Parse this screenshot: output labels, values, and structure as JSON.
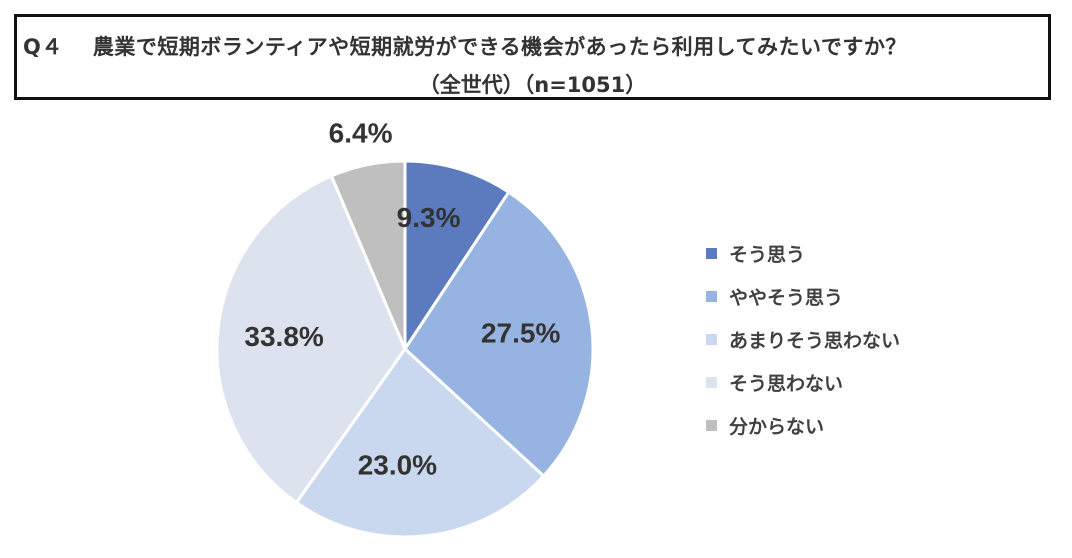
{
  "title": {
    "question_no": "Q４",
    "question": "農業で短期ボランティアや短期就労ができる機会があったら利用してみたいですか？",
    "subtitle": "（全世代）（n=1051）"
  },
  "chart_data": {
    "type": "pie",
    "start_angle_deg": 0,
    "direction": "clockwise",
    "slices": [
      {
        "label": "そう思う",
        "value": 9.3,
        "display": "9.3%",
        "color": "#5B7BBE"
      },
      {
        "label": "ややそう思う",
        "value": 27.5,
        "display": "27.5%",
        "color": "#97B3E1"
      },
      {
        "label": "あまりそう思わない",
        "value": 23.0,
        "display": "23.0%",
        "color": "#C9D7EF"
      },
      {
        "label": "そう思わない",
        "value": 33.8,
        "display": "33.8%",
        "color": "#DCE3EF"
      },
      {
        "label": "分からない",
        "value": 6.4,
        "display": "6.4%",
        "color": "#BFBFBF"
      }
    ],
    "legend_position": "right"
  }
}
